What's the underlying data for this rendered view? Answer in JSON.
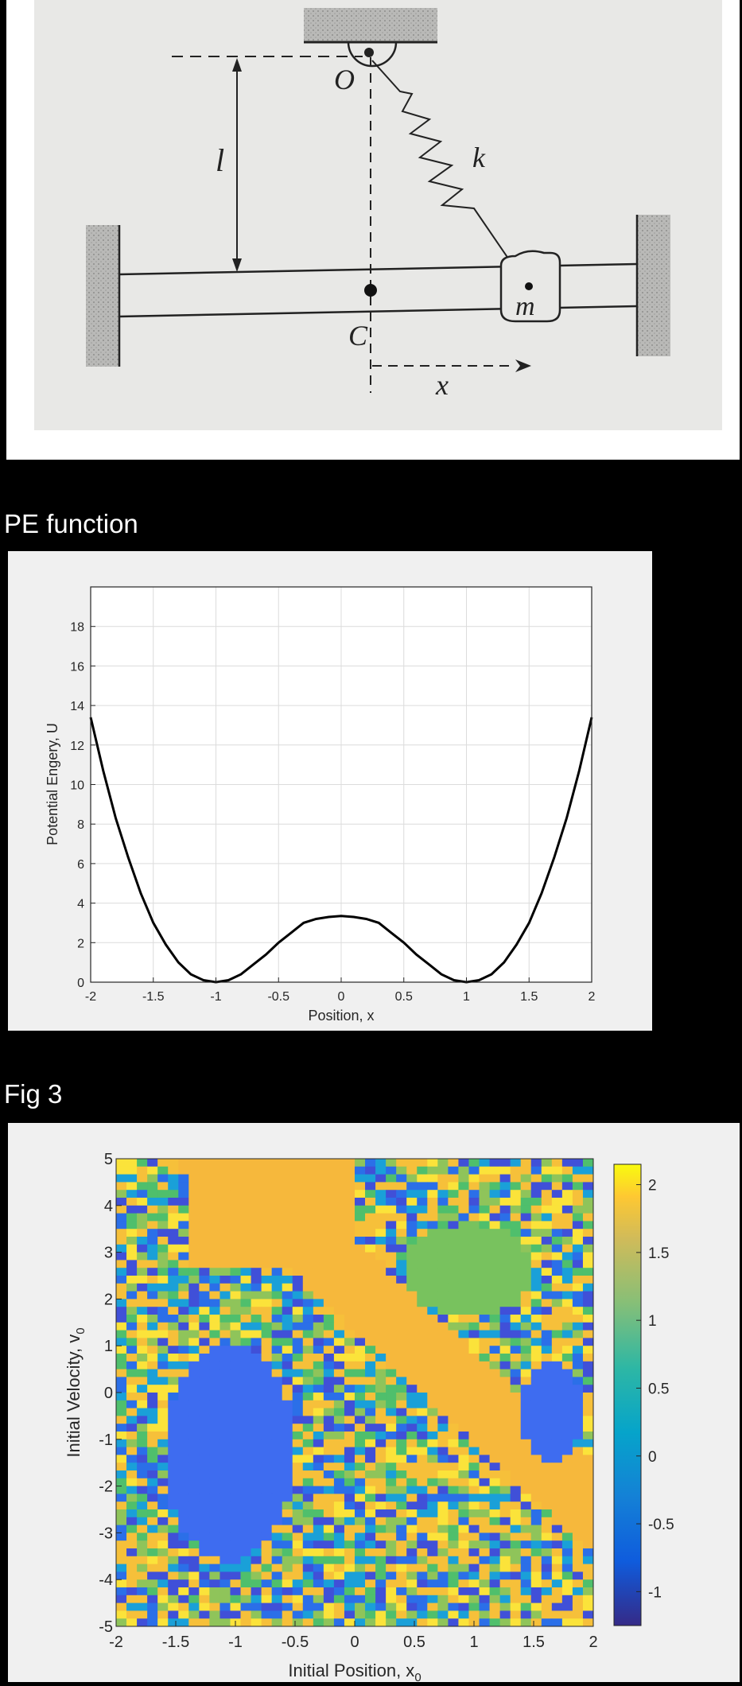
{
  "diagram": {
    "labels": {
      "pivot": "O",
      "length": "l",
      "spring": "k",
      "center": "C",
      "mass": "m",
      "displacement": "x"
    }
  },
  "sections": [
    {
      "title": "PE function"
    },
    {
      "title": "Fig 3"
    }
  ],
  "colors": {
    "page_background": "#000000",
    "figure_background": "#f0f0f0",
    "paper": "#e8e8e6"
  },
  "chart_data": [
    {
      "type": "line",
      "title": "",
      "xlabel": "Position, x",
      "ylabel": "Potential Engery, U",
      "xlim": [
        -2,
        2
      ],
      "ylim": [
        0,
        20
      ],
      "xticks": [
        "-2",
        "-1.5",
        "-1",
        "-0.5",
        "0",
        "0.5",
        "1",
        "1.5",
        "2"
      ],
      "yticks": [
        "0",
        "2",
        "4",
        "6",
        "8",
        "10",
        "12",
        "14",
        "16",
        "18"
      ],
      "grid": true,
      "series": [
        {
          "x": [
            -2,
            -1.9,
            -1.8,
            -1.7,
            -1.6,
            -1.5,
            -1.4,
            -1.3,
            -1.2,
            -1.1,
            -1.0,
            -0.9,
            -0.8,
            -0.7,
            -0.6,
            -0.5,
            -0.4,
            -0.3,
            -0.2,
            -0.1,
            0,
            0.1,
            0.2,
            0.3,
            0.4,
            0.5,
            0.6,
            0.7,
            0.8,
            0.9,
            1.0,
            1.1,
            1.2,
            1.3,
            1.4,
            1.5,
            1.6,
            1.7,
            1.8,
            1.9,
            2.0
          ],
          "values": [
            13.4,
            10.7,
            8.3,
            6.3,
            4.5,
            3.0,
            1.9,
            1.0,
            0.4,
            0.1,
            0.0,
            0.1,
            0.4,
            0.9,
            1.4,
            2.0,
            2.5,
            3.0,
            3.2,
            3.3,
            3.35,
            3.3,
            3.2,
            3.0,
            2.5,
            2.0,
            1.4,
            0.9,
            0.4,
            0.1,
            0.0,
            0.1,
            0.4,
            1.0,
            1.9,
            3.0,
            4.5,
            6.3,
            8.3,
            10.7,
            13.4
          ],
          "color": "#000000"
        }
      ]
    },
    {
      "type": "heatmap",
      "title": "",
      "xlabel": "Initial Position, x",
      "xlabel_sub": "0",
      "ylabel": "Initial Velocity, v",
      "ylabel_sub": "0",
      "xlim": [
        -2,
        2
      ],
      "ylim": [
        -5,
        5
      ],
      "xticks": [
        "-2",
        "-1.5",
        "-1",
        "-0.5",
        "0",
        "0.5",
        "1",
        "1.5",
        "2"
      ],
      "yticks": [
        "-5",
        "-4",
        "-3",
        "-2",
        "-1",
        "0",
        "1",
        "2",
        "3",
        "4",
        "5"
      ],
      "colorbar": {
        "range": [
          -1.25,
          2.15
        ],
        "ticks": [
          "-1",
          "-0.5",
          "0",
          "0.5",
          "1",
          "1.5",
          "2"
        ],
        "colormap": "parula"
      },
      "grid": false
    }
  ]
}
